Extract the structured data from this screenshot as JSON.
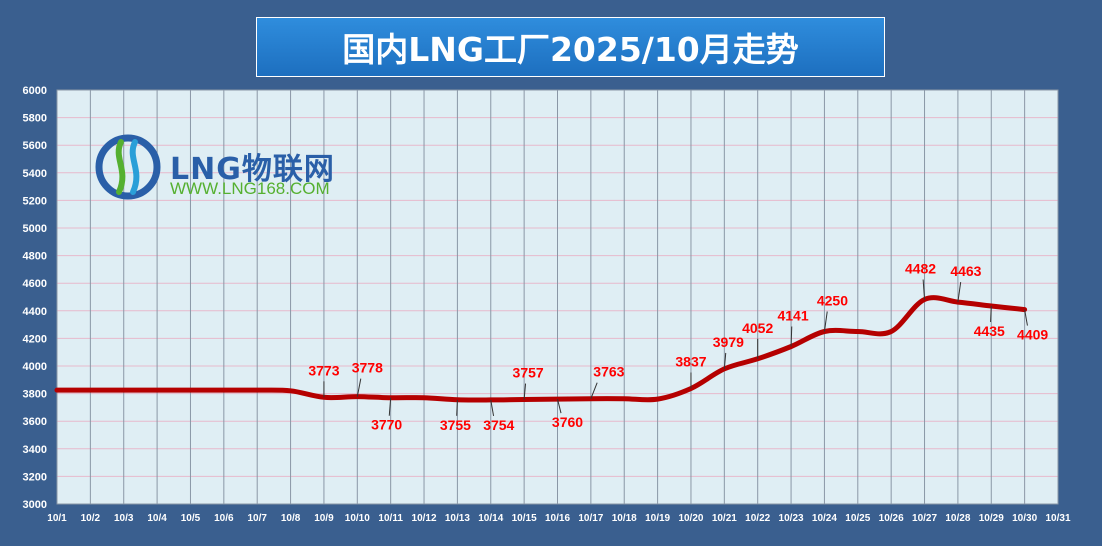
{
  "title": "国内LNG工厂2025/10月走势",
  "logo": {
    "name": "LNG物联网",
    "url": "WWW.LNG168.COM"
  },
  "colors": {
    "background": "#3a5f8f",
    "plot_bg": "#dfeef4",
    "line": "#b50000",
    "label": "#ff0000",
    "title_box": "#2580d0"
  },
  "chart_data": {
    "type": "line",
    "title": "国内LNG工厂2025/10月走势",
    "xlabel": "",
    "ylabel": "",
    "ylim": [
      3000,
      6000
    ],
    "y_ticks": [
      3000,
      3200,
      3400,
      3600,
      3800,
      4000,
      4200,
      4400,
      4600,
      4800,
      5000,
      5200,
      5400,
      5600,
      5800,
      6000
    ],
    "categories": [
      "10/1",
      "10/2",
      "10/3",
      "10/4",
      "10/5",
      "10/6",
      "10/7",
      "10/8",
      "10/9",
      "10/10",
      "10/11",
      "10/12",
      "10/13",
      "10/14",
      "10/15",
      "10/16",
      "10/17",
      "10/18",
      "10/19",
      "10/20",
      "10/21",
      "10/22",
      "10/23",
      "10/24",
      "10/25",
      "10/26",
      "10/27",
      "10/28",
      "10/29",
      "10/30",
      "10/31"
    ],
    "series": [
      {
        "values": [
          3825,
          3825,
          3825,
          3825,
          3825,
          3825,
          3825,
          3820,
          3773,
          3778,
          3770,
          3770,
          3755,
          3754,
          3757,
          3760,
          3763,
          3763,
          3760,
          3837,
          3979,
          4052,
          4141,
          4250,
          4250,
          4250,
          4482,
          4463,
          4435,
          4409,
          null
        ]
      }
    ],
    "data_labels": [
      {
        "x": "10/9",
        "value": "3773"
      },
      {
        "x": "10/10",
        "value": "3778"
      },
      {
        "x": "10/11",
        "value": "3770"
      },
      {
        "x": "10/13",
        "value": "3755"
      },
      {
        "x": "10/14",
        "value": "3754"
      },
      {
        "x": "10/15",
        "value": "3757"
      },
      {
        "x": "10/16",
        "value": "3760"
      },
      {
        "x": "10/17",
        "value": "3763"
      },
      {
        "x": "10/20",
        "value": "3837"
      },
      {
        "x": "10/21",
        "value": "3979"
      },
      {
        "x": "10/22",
        "value": "4052"
      },
      {
        "x": "10/23",
        "value": "4141"
      },
      {
        "x": "10/24",
        "value": "4250"
      },
      {
        "x": "10/27",
        "value": "4482"
      },
      {
        "x": "10/28",
        "value": "4463"
      },
      {
        "x": "10/29",
        "value": "4435"
      },
      {
        "x": "10/30",
        "value": "4409"
      }
    ],
    "grid": true
  }
}
